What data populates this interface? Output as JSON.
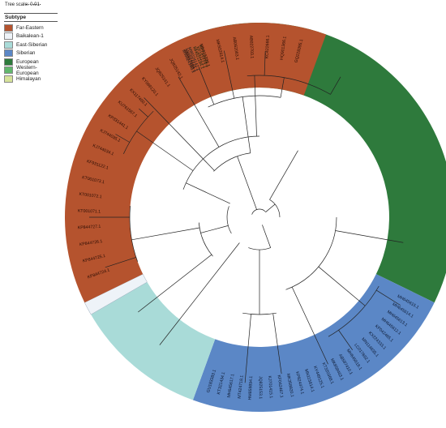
{
  "scale": {
    "label": "Tree scale: 0.01"
  },
  "legend": {
    "title": "Subtype",
    "items": [
      {
        "label": "Far-Eastern",
        "color": "#b5532e"
      },
      {
        "label": "Baikalean-1",
        "color": "#eef3f8"
      },
      {
        "label": "East-Siberian",
        "color": "#a9dbd8"
      },
      {
        "label": "Siberian",
        "color": "#5b87c6"
      },
      {
        "label": "European",
        "color": "#2e7a3c"
      },
      {
        "label": "Western-European",
        "color": "#61b76c"
      },
      {
        "label": "Himalayan",
        "color": "#d6e39a"
      }
    ]
  },
  "tree": {
    "clades": [
      {
        "subtype": "European",
        "color": "#2e7a3c",
        "start": -108,
        "end": 26
      },
      {
        "subtype": "Western-European",
        "color": "#61b76c",
        "start": -112,
        "end": -108
      },
      {
        "subtype": "Himalayan",
        "color": "#d6e39a",
        "start": -115,
        "end": -112
      },
      {
        "subtype": "Siberian",
        "color": "#5b87c6",
        "start": 26,
        "end": 110
      },
      {
        "subtype": "East-Siberian",
        "color": "#a9dbd8",
        "start": 110,
        "end": 150
      },
      {
        "subtype": "Baikalean-1",
        "color": "#eef3f8",
        "start": 150,
        "end": 154
      },
      {
        "subtype": "Far-Eastern",
        "color": "#b5532e",
        "start": 154,
        "end": 290
      }
    ],
    "leaf_labels": {
      "siberian": [
        "MH645615.1",
        "MH645614.1",
        "MH645613.1",
        "MH645612.1",
        "KF042465.1",
        "KX224333.1",
        "MN114635.1",
        "LC017692.1",
        "MH645618.1",
        "AB597410.1",
        "MK858463.1",
        "KT320368.1",
        "KY449125.1",
        "MN115814.1",
        "KP824474.1",
        "MK358820.1",
        "KF042467.1",
        "KJ701415.1",
        "JQ825153.1",
        "HM859894.1",
        "MT424718.1",
        "MH645617.1",
        "KT321434.1",
        "GU183383.1"
      ],
      "far_eastern": [
        "KP844724.1",
        "KP844725.1",
        "KP844726.1",
        "KP844727.1",
        "KT001071.1",
        "KT001072.1",
        "KT001073.1",
        "KF931122.1",
        "KJ744034.1",
        "KJ744035.1",
        "KP331441.1",
        "KU761567.1",
        "KX117460.1",
        "KY069120.1",
        "JQ825141.1",
        "JQ825142.1",
        "MH917580.1",
        "MN615726.1",
        "MK922614.1",
        "AB062063.1",
        "AB022703.1",
        "KC422666.1",
        "HQ901366.1",
        "GQ228395.1"
      ],
      "himalayan": [
        "MW024140.1",
        "MW024141.1",
        "MW024142.1"
      ],
      "western_european": [
        "MH021184.1",
        "KF151173.1",
        "KP716978.1"
      ]
    }
  }
}
